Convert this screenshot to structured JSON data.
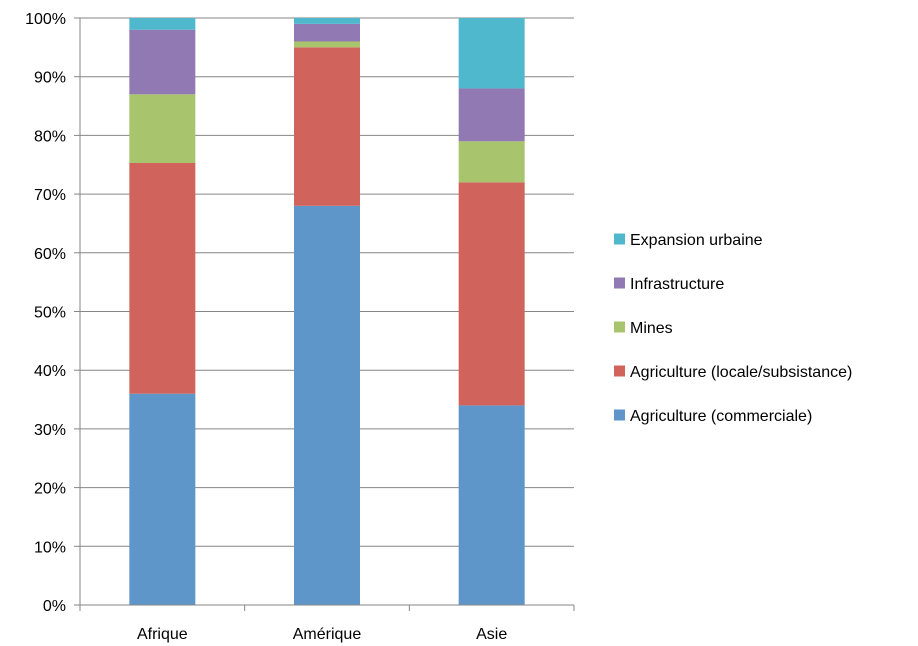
{
  "chart_data": {
    "type": "bar",
    "stacked": true,
    "percent_stacked": true,
    "categories": [
      "Afrique",
      "Amérique",
      "Asie"
    ],
    "series": [
      {
        "name": "Agriculture (commerciale)",
        "color": "#5f96c9",
        "values": [
          36,
          68,
          34
        ]
      },
      {
        "name": "Agriculture (locale/subsistance)",
        "color": "#d0645d",
        "values": [
          39.3,
          27,
          38
        ]
      },
      {
        "name": "Mines",
        "color": "#a8c46c",
        "values": [
          11.7,
          1,
          7
        ]
      },
      {
        "name": "Infrastructure",
        "color": "#9179b3",
        "values": [
          11,
          3,
          9
        ]
      },
      {
        "name": "Expansion urbaine",
        "color": "#4fb8cc",
        "values": [
          2,
          1,
          12
        ]
      }
    ],
    "yticks": [
      "0%",
      "10%",
      "20%",
      "30%",
      "40%",
      "50%",
      "60%",
      "70%",
      "80%",
      "90%",
      "100%"
    ],
    "ylim": [
      0,
      100
    ],
    "grid": true,
    "legend_position": "right",
    "axis_color": "#868686"
  }
}
